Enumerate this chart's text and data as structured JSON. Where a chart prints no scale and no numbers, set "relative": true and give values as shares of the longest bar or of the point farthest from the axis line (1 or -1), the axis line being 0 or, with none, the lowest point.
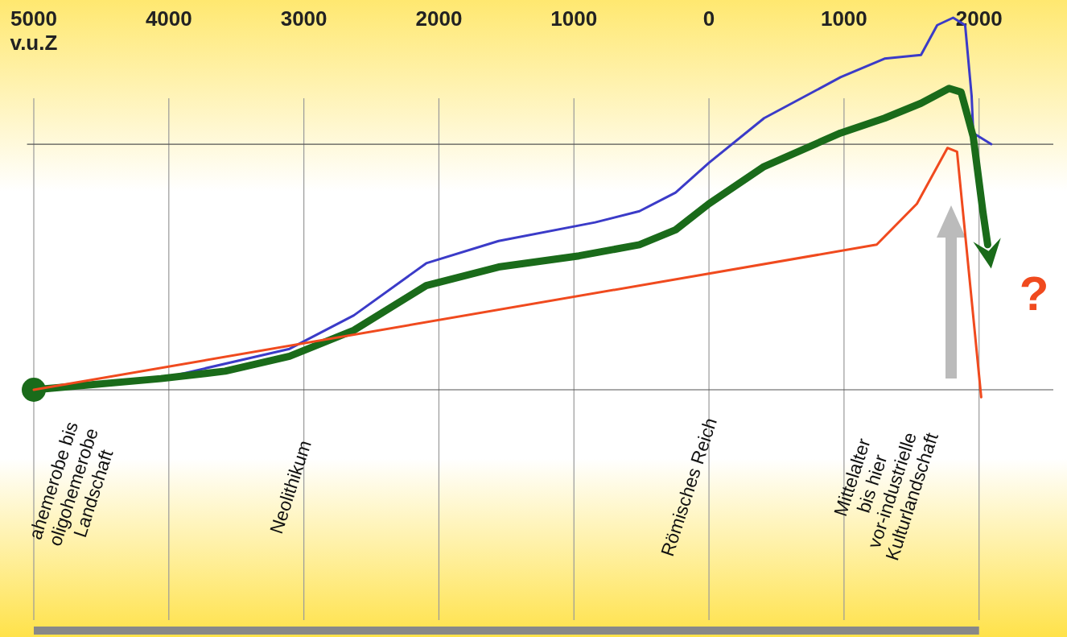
{
  "chart_data": {
    "type": "line",
    "relative": true,
    "xlim": [
      -5050,
      2550
    ],
    "xticks": [
      {
        "value": -5000,
        "label": "5000 v.u.Z"
      },
      {
        "value": -4000,
        "label": "4000"
      },
      {
        "value": -3000,
        "label": "3000"
      },
      {
        "value": -2000,
        "label": "2000"
      },
      {
        "value": -1000,
        "label": "1000"
      },
      0,
      1000,
      2000
    ],
    "grid": "x",
    "ref_lines": [
      {
        "axis": "y",
        "value": 0.66,
        "color": "#555555"
      }
    ],
    "series": [
      {
        "color": "#3b3bc8",
        "x": [
          -5000,
          -4059,
          -3583,
          -3106,
          -2630,
          -2094,
          -1558,
          -843,
          -515,
          -247,
          0,
          408,
          974,
          1300,
          1570,
          1690,
          1808,
          1897,
          1945,
          1957,
          2090
        ],
        "values": [
          0,
          0.03,
          null,
          0.11,
          0.2,
          0.34,
          0.4,
          0.45,
          0.48,
          0.53,
          0.61,
          0.73,
          0.84,
          0.89,
          0.9,
          0.98,
          1,
          0.98,
          0.79,
          0.69,
          0.66
        ]
      },
      {
        "color": "#1a6b1a",
        "x": [
          -5000,
          -4059,
          -3583,
          -3106,
          -2630,
          -2094,
          -1558,
          -962,
          -515,
          -247,
          0,
          408,
          974,
          1300,
          1570,
          1778,
          1867,
          1957,
          2028,
          2064
        ],
        "values": [
          0,
          0.03,
          0.05,
          0.09,
          0.16,
          0.28,
          0.33,
          0.36,
          0.39,
          0.43,
          0.5,
          0.6,
          0.69,
          0.73,
          0.77,
          0.81,
          0.8,
          0.68,
          0.48,
          0.39
        ]
      },
      {
        "color": "#f04a1e",
        "x": [
          -5000,
          1242,
          1540,
          1766,
          1837,
          2016
        ],
        "values": [
          0,
          0.39,
          0.5,
          0.65,
          0.64,
          -0.02
        ]
      }
    ],
    "annotations": [
      "ahemerobe bis\noligohemerobe\nLandschaft",
      "Neolithikum",
      "Römisches Reich",
      "Mittelalter\nbis hier\nvor-industrielle\nKulturlandschaft",
      "?"
    ]
  }
}
